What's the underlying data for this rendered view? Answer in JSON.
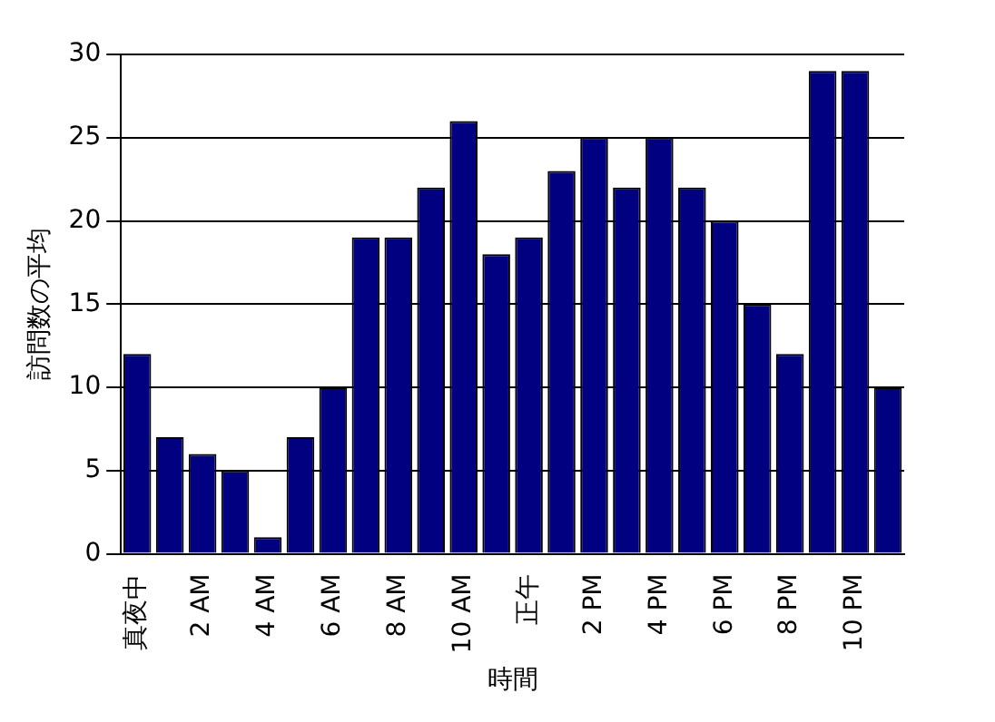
{
  "chart_data": {
    "type": "bar",
    "xlabel": "時間",
    "ylabel": "訪問数の平均",
    "categories": [
      "真夜中",
      null,
      "2 AM",
      null,
      "4 AM",
      null,
      "6 AM",
      null,
      "8 AM",
      null,
      "10 AM",
      null,
      "正午",
      null,
      "2 PM",
      null,
      "4 PM",
      null,
      "6 PM",
      null,
      "8 PM",
      null,
      "10 PM",
      null
    ],
    "values": [
      12,
      7,
      6,
      5,
      1,
      7,
      10,
      19,
      19,
      22,
      26,
      18,
      19,
      23,
      25,
      22,
      25,
      22,
      20,
      15,
      12,
      29,
      29,
      10
    ],
    "color": "#000080",
    "ylim": [
      0,
      30
    ],
    "yticks": [
      0,
      5,
      10,
      15,
      20,
      25,
      30
    ],
    "grid": "y",
    "legend": false
  }
}
